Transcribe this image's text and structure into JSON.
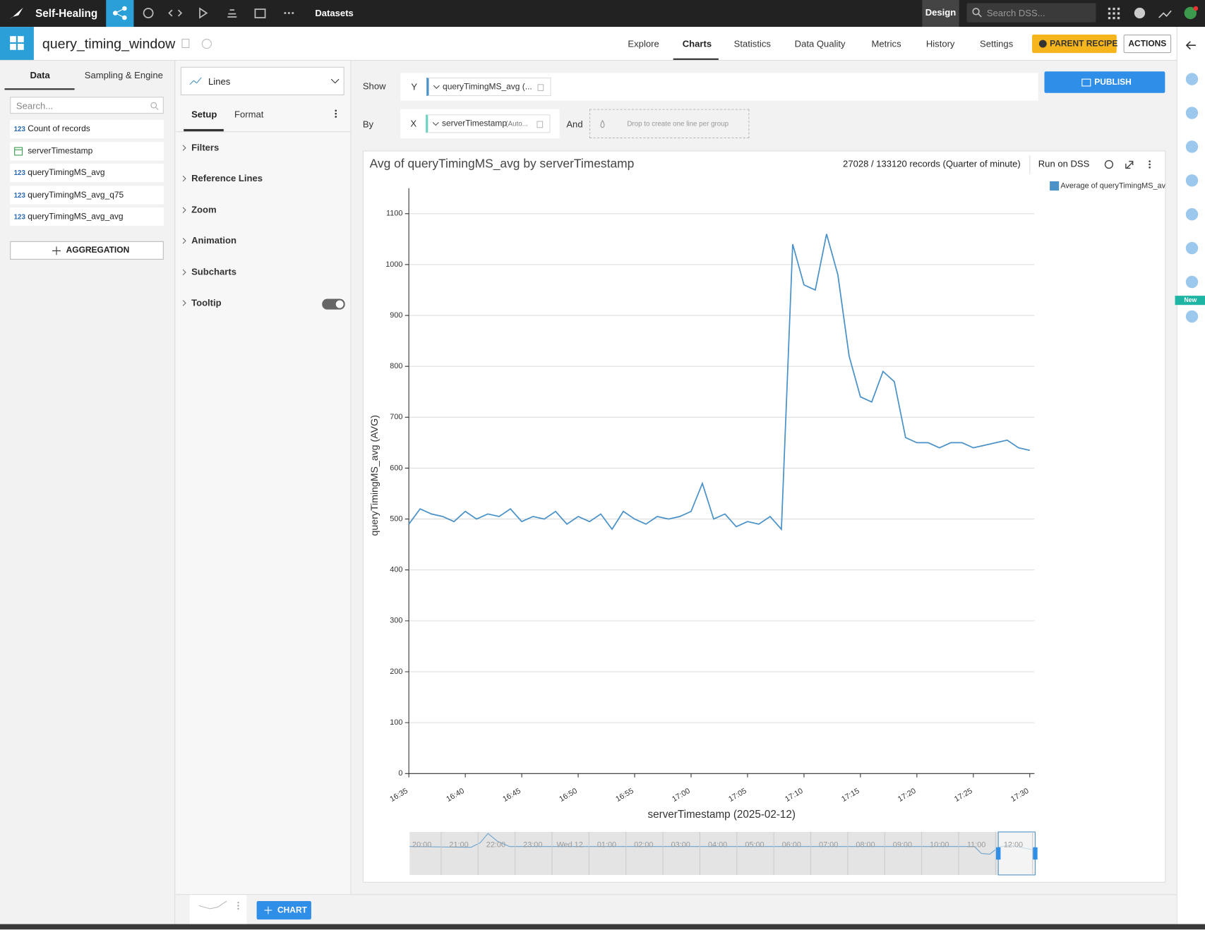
{
  "topbar": {
    "project": "Self-Healing",
    "section": "Datasets",
    "mode": "Design",
    "search_placeholder": "Search DSS..."
  },
  "header": {
    "dataset": "query_timing_window",
    "tabs": [
      "Explore",
      "Charts",
      "Statistics",
      "Data Quality",
      "Metrics",
      "History",
      "Settings"
    ],
    "parent_recipe": "PARENT RECIPE",
    "actions": "ACTIONS"
  },
  "left_panel": {
    "tabs": [
      "Data",
      "Sampling & Engine"
    ],
    "search_placeholder": "Search...",
    "columns": [
      {
        "type": "123",
        "name": "Count of records"
      },
      {
        "name": "serverTimestamp"
      },
      {
        "type": "123",
        "name": "queryTimingMS_avg"
      },
      {
        "type": "123",
        "name": "queryTimingMS_avg_q75"
      },
      {
        "type": "123",
        "name": "queryTimingMS_avg_avg"
      }
    ],
    "aggregation": "AGGREGATION"
  },
  "config_panel": {
    "chart_type": "Lines",
    "tabs": [
      "Setup",
      "Format"
    ],
    "sections": [
      "Filters",
      "Reference Lines",
      "Zoom",
      "Animation",
      "Subcharts",
      "Tooltip"
    ]
  },
  "shelf": {
    "show": "Show",
    "y_label": "Y",
    "y_field": "queryTimingMS_avg (...",
    "by": "By",
    "x_label": "X",
    "x_field": "serverTimestamp",
    "x_field_note": "(Auto...",
    "and": "And",
    "drop_hint": "Drop to create one line per group",
    "publish": "PUBLISH"
  },
  "chart_header": {
    "records": "27028 / 133120 records (Quarter of minute)",
    "run": "Run on DSS"
  },
  "chart_data": {
    "type": "line",
    "title": "Avg of queryTimingMS_avg by serverTimestamp",
    "x_label": "serverTimestamp (2025-02-12)",
    "y_label": "queryTimingMS_avg (AVG)",
    "x": [
      "16:35",
      "16:36",
      "16:37",
      "16:38",
      "16:39",
      "16:40",
      "16:41",
      "16:42",
      "16:43",
      "16:44",
      "16:45",
      "16:46",
      "16:47",
      "16:48",
      "16:49",
      "16:50",
      "16:51",
      "16:52",
      "16:53",
      "16:54",
      "16:55",
      "16:56",
      "16:57",
      "16:58",
      "16:59",
      "17:00",
      "17:01",
      "17:02",
      "17:03",
      "17:04",
      "17:05",
      "17:06",
      "17:07",
      "17:08",
      "17:09",
      "17:10",
      "17:11",
      "17:12",
      "17:13",
      "17:14",
      "17:15",
      "17:16",
      "17:17",
      "17:18",
      "17:19",
      "17:20",
      "17:21",
      "17:22",
      "17:23",
      "17:24",
      "17:25",
      "17:26",
      "17:27",
      "17:28",
      "17:29",
      "17:30"
    ],
    "series": [
      {
        "name": "Average of queryTimingMS_avg",
        "color": "#4a92c8",
        "values": [
          490,
          520,
          510,
          505,
          495,
          515,
          500,
          510,
          505,
          520,
          495,
          505,
          500,
          515,
          490,
          505,
          495,
          510,
          480,
          515,
          500,
          490,
          505,
          500,
          505,
          515,
          570,
          500,
          510,
          485,
          495,
          490,
          505,
          480,
          1040,
          960,
          950,
          1060,
          980,
          820,
          740,
          730,
          790,
          770,
          660,
          650,
          650,
          640,
          650,
          650,
          640,
          645,
          650,
          655,
          640,
          635
        ]
      }
    ],
    "xlim": [
      "16:35",
      "17:30"
    ],
    "xticks": [
      "16:35",
      "16:40",
      "16:45",
      "16:50",
      "16:55",
      "17:00",
      "17:05",
      "17:10",
      "17:15",
      "17:20",
      "17:25",
      "17:30"
    ],
    "ylim": [
      0,
      1150
    ],
    "yticks": [
      0,
      100,
      200,
      300,
      400,
      500,
      600,
      700,
      800,
      900,
      1000,
      1100
    ],
    "grid": true,
    "legend": "top-right"
  },
  "navigator": {
    "labels": [
      "20:00",
      "21:00",
      "22:00",
      "23:00",
      "Wed 12",
      "01:00",
      "02:00",
      "03:00",
      "04:00",
      "05:00",
      "06:00",
      "07:00",
      "08:00",
      "09:00",
      "10:00",
      "11:00",
      "12:00"
    ]
  },
  "footer": {
    "add_chart": "CHART"
  },
  "right_rail": {
    "badge": "New"
  }
}
